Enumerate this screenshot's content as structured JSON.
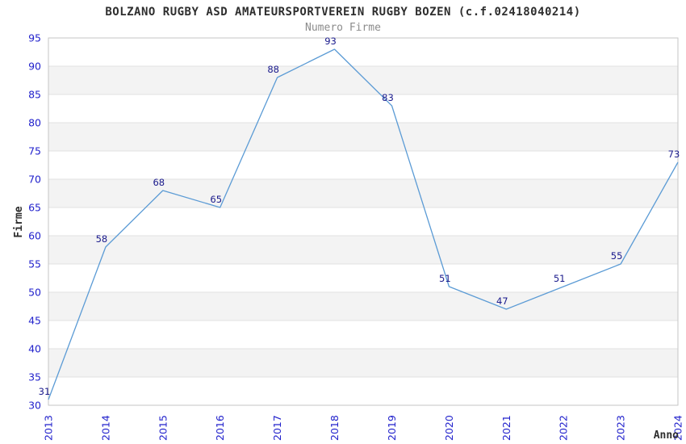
{
  "chart_data": {
    "type": "line",
    "title": "BOLZANO RUGBY ASD AMATEURSPORTVEREIN RUGBY BOZEN (c.f.02418040214)",
    "subtitle": "Numero Firme",
    "xlabel": "Anno",
    "ylabel": "Firme",
    "categories": [
      "2013",
      "2014",
      "2015",
      "2016",
      "2017",
      "2018",
      "2019",
      "2020",
      "2021",
      "2022",
      "2023",
      "2024"
    ],
    "series": [
      {
        "name": "Numero Firme",
        "values": [
          31,
          58,
          68,
          65,
          88,
          93,
          83,
          51,
          47,
          51,
          55,
          73
        ]
      }
    ],
    "ylim": [
      30,
      95
    ],
    "ytick_step": 5,
    "grid": true,
    "legend": "none",
    "show_point_labels": true,
    "colors": {
      "line": "#5b9bd5",
      "tick_label": "#2222cc",
      "point_label": "#1a1a8c",
      "band": "#f3f3f3",
      "gridline": "#e0e0e0",
      "border": "#c6c6c6",
      "title": "#2e2e2e",
      "subtitle": "#8c8c8c"
    }
  }
}
